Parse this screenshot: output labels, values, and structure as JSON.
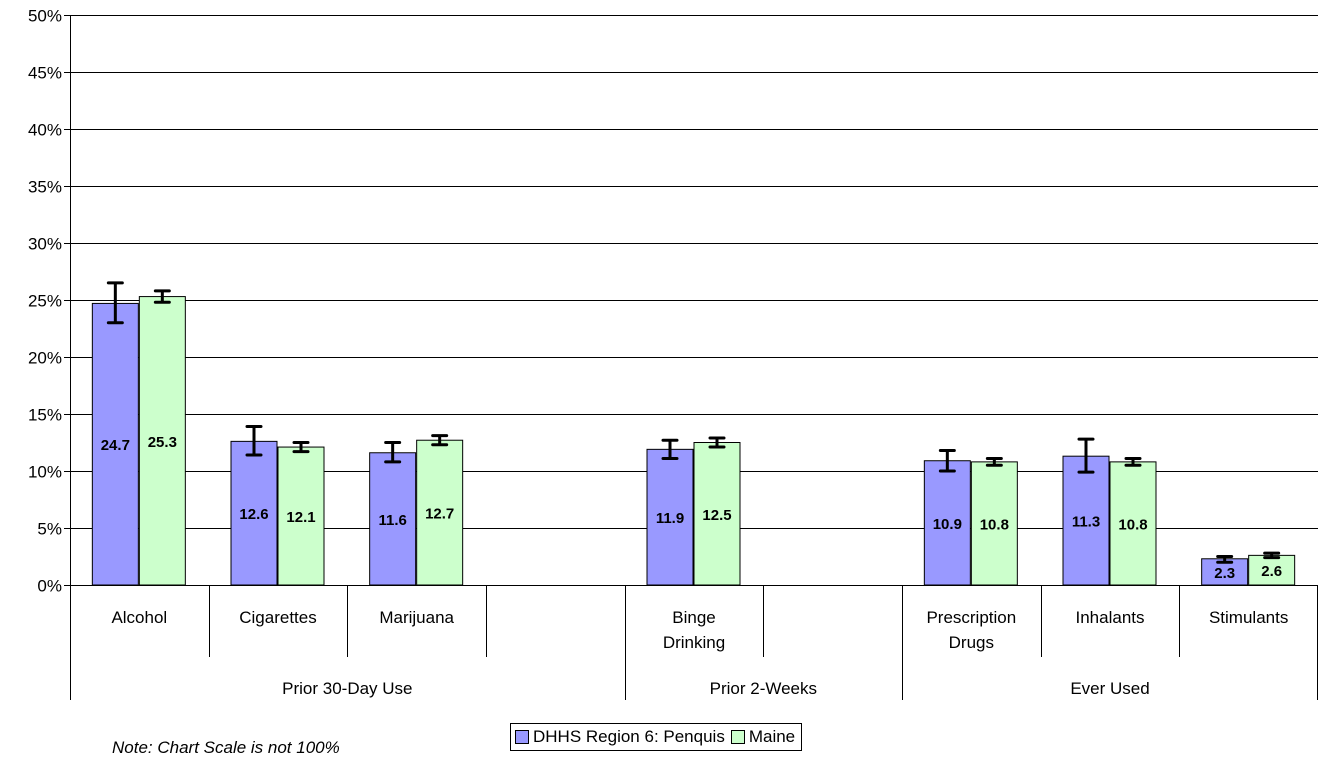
{
  "chart_data": {
    "type": "bar",
    "ylim": [
      0,
      50
    ],
    "yticks": [
      "0%",
      "5%",
      "10%",
      "15%",
      "20%",
      "25%",
      "30%",
      "35%",
      "40%",
      "45%",
      "50%"
    ],
    "grid": true,
    "legend_position": "bottom",
    "categories": [
      "Alcohol",
      "Cigarettes",
      "Marijuana",
      "",
      "Binge Drinking",
      "",
      "Prescription Drugs",
      "Inhalants",
      "Stimulants"
    ],
    "category_labels": [
      [
        "Alcohol"
      ],
      [
        "Cigarettes"
      ],
      [
        "Marijuana"
      ],
      [],
      [
        "Binge",
        "Drinking"
      ],
      [],
      [
        "Prescription",
        "Drugs"
      ],
      [
        "Inhalants"
      ],
      [
        "Stimulants"
      ]
    ],
    "groups": [
      {
        "label": "Prior 30-Day Use",
        "start": 0,
        "end": 3
      },
      {
        "label": "Prior 2-Weeks",
        "start": 4,
        "end": 5
      },
      {
        "label": "Ever Used",
        "start": 6,
        "end": 8
      }
    ],
    "series": [
      {
        "name": "DHHS Region 6: Penquis",
        "color": "#9999FF",
        "values": [
          24.7,
          12.6,
          11.6,
          null,
          11.9,
          null,
          10.9,
          11.3,
          2.3
        ],
        "labels": [
          "24.7",
          "12.6",
          "11.6",
          "",
          "11.9",
          "",
          "10.9",
          "11.3",
          "2.3"
        ],
        "ci_low": [
          23.0,
          11.4,
          10.8,
          null,
          11.1,
          null,
          10.0,
          9.9,
          2.0
        ],
        "ci_high": [
          26.5,
          13.9,
          12.5,
          null,
          12.7,
          null,
          11.8,
          12.8,
          2.5
        ]
      },
      {
        "name": "Maine",
        "color": "#CCFFCC",
        "values": [
          25.3,
          12.1,
          12.7,
          null,
          12.5,
          null,
          10.8,
          10.8,
          2.6
        ],
        "labels": [
          "25.3",
          "12.1",
          "12.7",
          "",
          "12.5",
          "",
          "10.8",
          "10.8",
          "2.6"
        ],
        "ci_low": [
          24.8,
          11.7,
          12.3,
          null,
          12.1,
          null,
          10.5,
          10.5,
          2.4
        ],
        "ci_high": [
          25.8,
          12.5,
          13.1,
          null,
          12.9,
          null,
          11.1,
          11.1,
          2.8
        ]
      }
    ]
  },
  "note": "Note: Chart Scale is not 100%",
  "legend": {
    "items": [
      {
        "label": "DHHS Region 6: Penquis",
        "color": "#9999FF"
      },
      {
        "label": "Maine",
        "color": "#CCFFCC"
      }
    ]
  }
}
